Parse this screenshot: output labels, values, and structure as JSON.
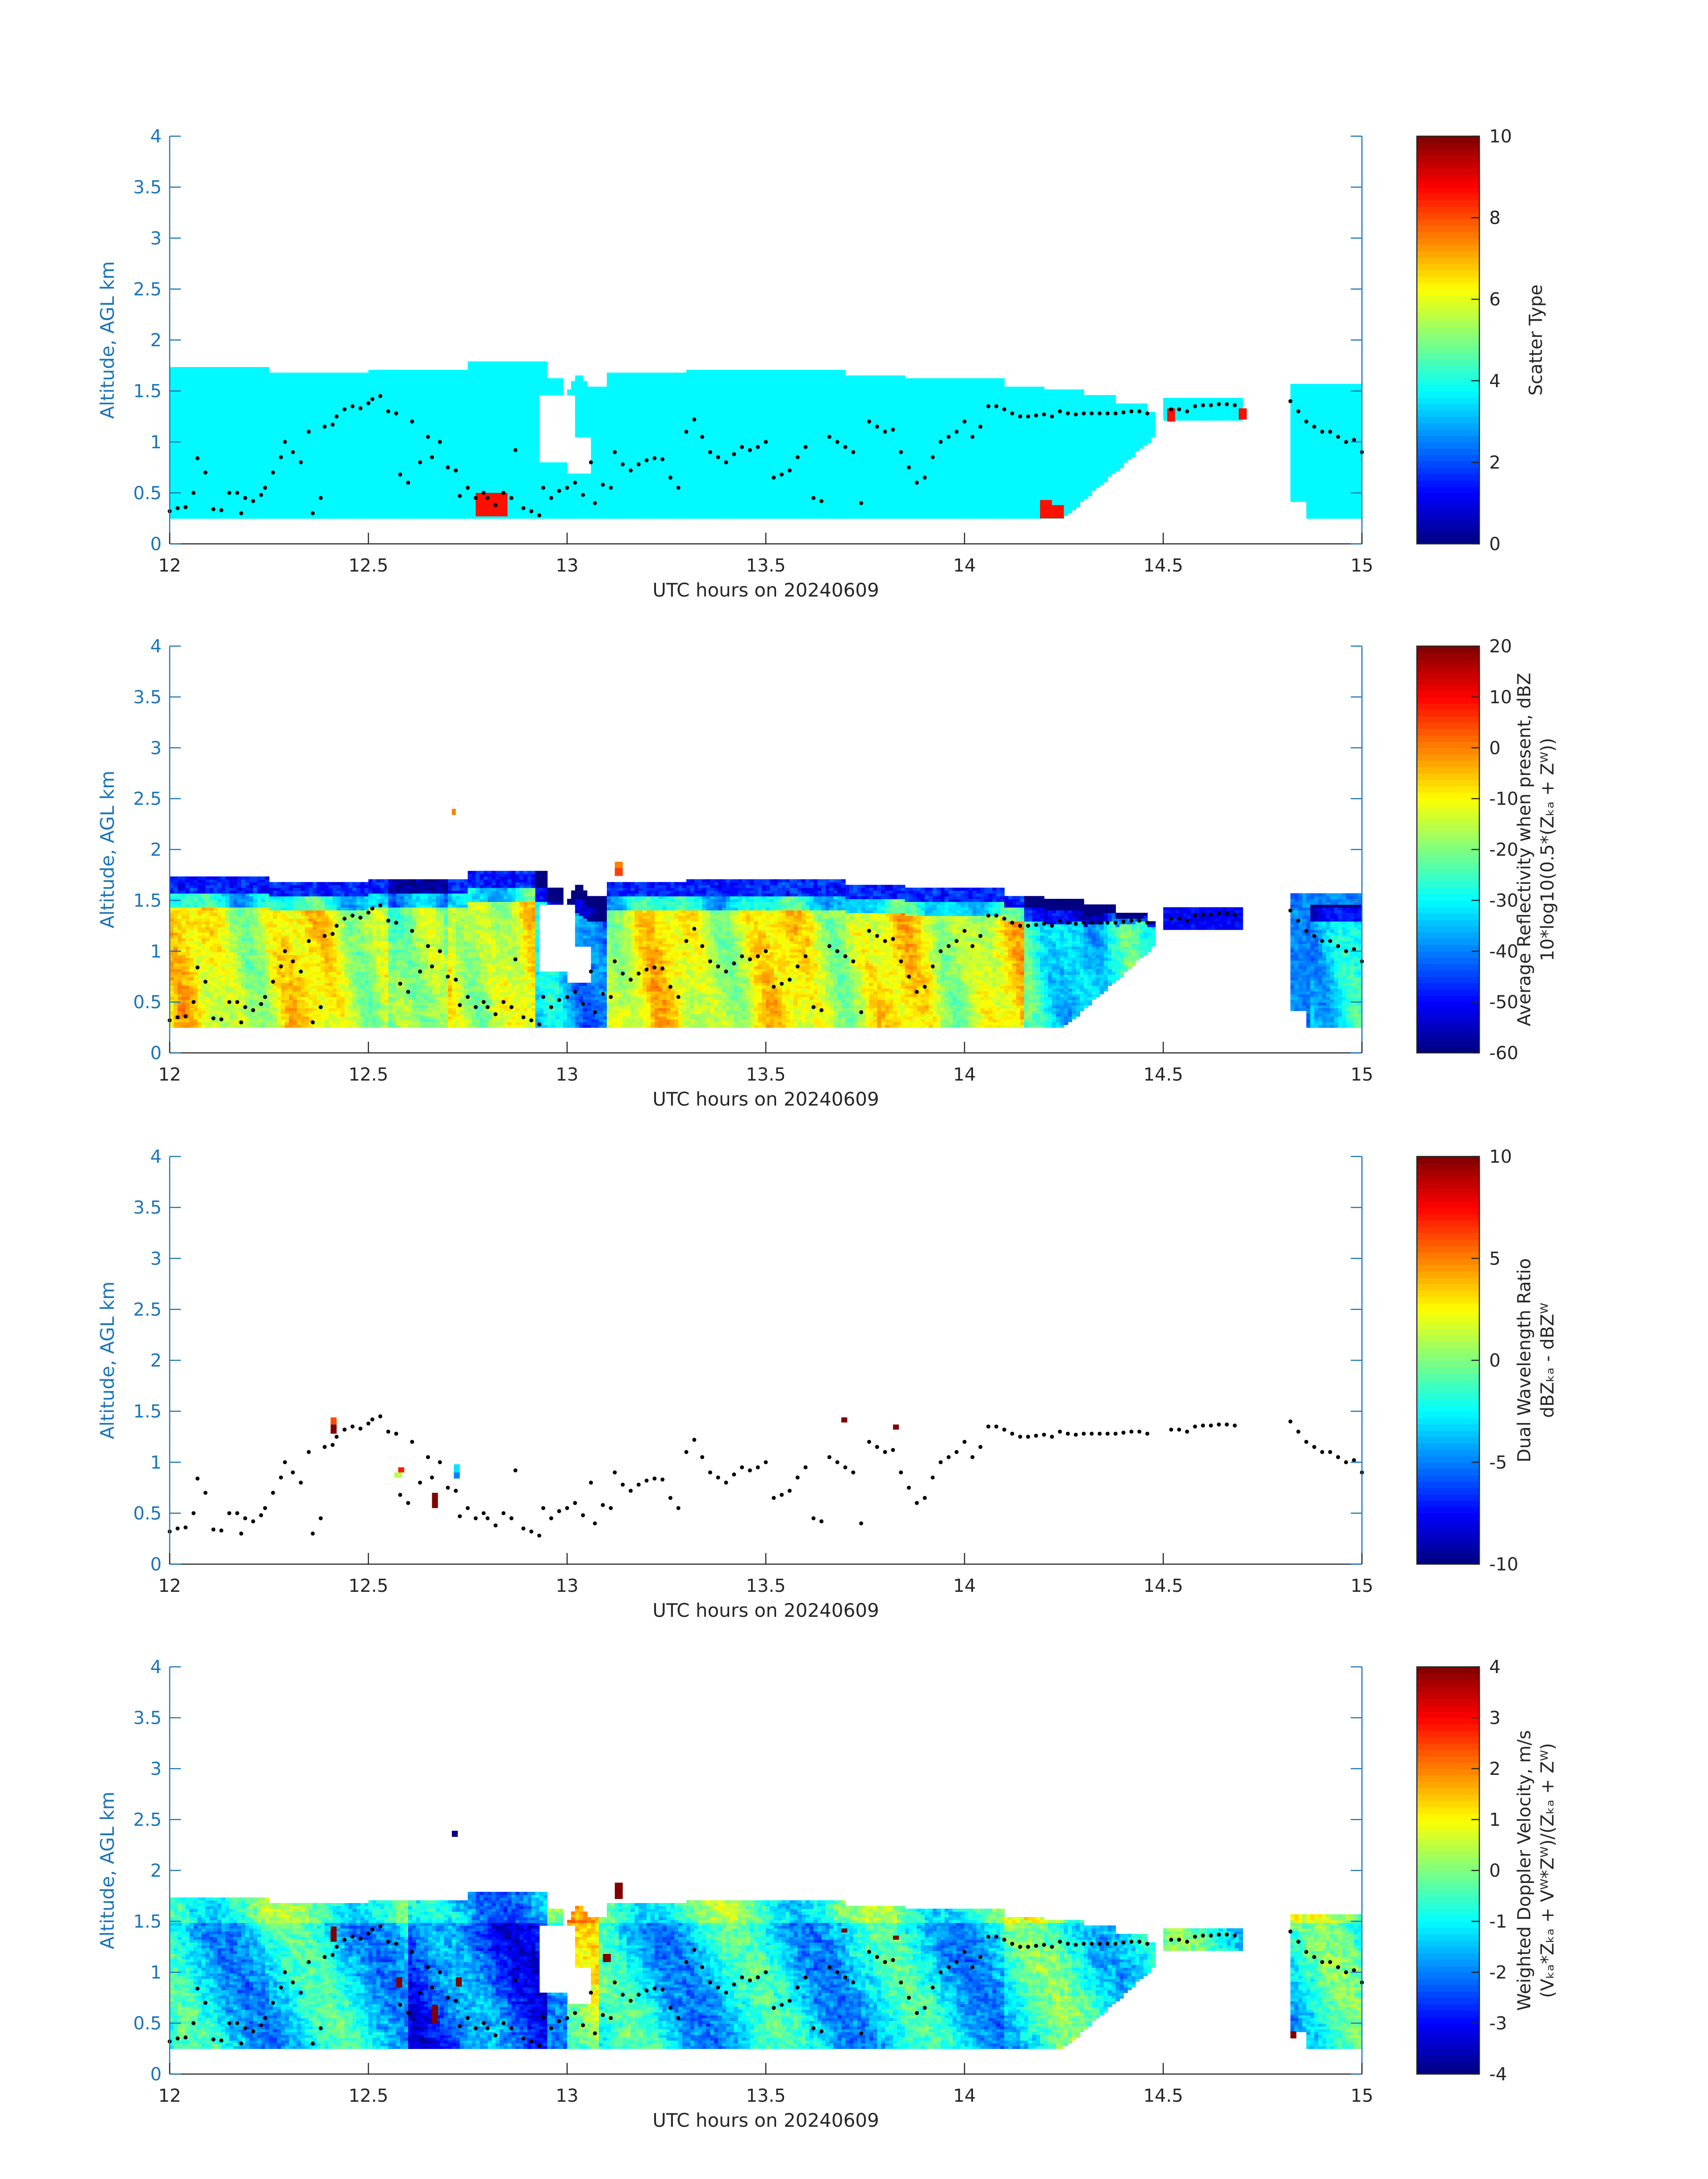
{
  "chart_data": [
    {
      "type": "heatmap",
      "xlabel": "UTC hours on 20240609",
      "ylabel": "Altitude, AGL km",
      "xlim": [
        12,
        15
      ],
      "ylim": [
        0,
        4
      ],
      "xticks": [
        "12",
        "12.5",
        "13",
        "13.5",
        "14",
        "14.5",
        "15"
      ],
      "yticks": [
        "0",
        "0.5",
        "1",
        "1.5",
        "2",
        "2.5",
        "3",
        "3.5",
        "4"
      ],
      "colorbar": {
        "label": [
          "Scatter Type"
        ],
        "range": [
          0,
          10
        ],
        "ticks": [
          "0",
          "2",
          "4",
          "6",
          "8",
          "10"
        ]
      },
      "field_mode": "scatter",
      "cloud_marker": "dots",
      "fill_value": 3.7,
      "spots": [
        {
          "t0": 12.77,
          "t1": 12.85,
          "z0": 0.27,
          "z1": 0.5,
          "v": 8.6
        },
        {
          "t0": 14.19,
          "t1": 14.22,
          "z0": 0.25,
          "z1": 0.43,
          "v": 8.6
        },
        {
          "t0": 14.22,
          "t1": 14.25,
          "z0": 0.25,
          "z1": 0.38,
          "v": 8.6
        },
        {
          "t0": 14.51,
          "t1": 14.53,
          "z0": 1.2,
          "z1": 1.33,
          "v": 8.6
        },
        {
          "t0": 14.69,
          "t1": 14.71,
          "z0": 1.22,
          "z1": 1.33,
          "v": 8.6
        }
      ]
    },
    {
      "type": "heatmap",
      "xlabel": "UTC hours on 20240609",
      "ylabel": "Altitude, AGL km",
      "xlim": [
        12,
        15
      ],
      "ylim": [
        0,
        4
      ],
      "xticks": [
        "12",
        "12.5",
        "13",
        "13.5",
        "14",
        "14.5",
        "15"
      ],
      "yticks": [
        "0",
        "0.5",
        "1",
        "1.5",
        "2",
        "2.5",
        "3",
        "3.5",
        "4"
      ],
      "colorbar": {
        "label": [
          "Average Reflectivity when present, dBZ",
          "10*log10(0.5*(Zₖₐ + Zᵂ))"
        ],
        "range": [
          -60,
          20
        ],
        "ticks": [
          "-60",
          "-50",
          "-40",
          "-30",
          "-20",
          "-10",
          "0",
          "10",
          "20"
        ]
      },
      "field_mode": "reflectivity",
      "cloud_marker": "dots",
      "spots": [
        {
          "t0": 12.71,
          "t1": 12.72,
          "z0": 2.34,
          "z1": 2.4,
          "v": 0
        },
        {
          "t0": 13.12,
          "t1": 13.14,
          "z0": 1.74,
          "z1": 1.82,
          "v": 5
        },
        {
          "t0": 13.12,
          "t1": 13.14,
          "z0": 1.82,
          "z1": 1.88,
          "v": 0
        }
      ]
    },
    {
      "type": "heatmap",
      "xlabel": "UTC hours on 20240609",
      "ylabel": "Altitude, AGL km",
      "xlim": [
        12,
        15
      ],
      "ylim": [
        0,
        4
      ],
      "xticks": [
        "12",
        "12.5",
        "13",
        "13.5",
        "14",
        "14.5",
        "15"
      ],
      "yticks": [
        "0",
        "0.5",
        "1",
        "1.5",
        "2",
        "2.5",
        "3",
        "3.5",
        "4"
      ],
      "colorbar": {
        "label": [
          "Dual Wavelength Ratio",
          "dBZₖₐ - dBZᵂ"
        ],
        "range": [
          -10,
          10
        ],
        "ticks": [
          "-10",
          "-5",
          "0",
          "5",
          "10"
        ]
      },
      "field_mode": "none",
      "cloud_marker": "dots",
      "spots": [
        {
          "t0": 12.405,
          "t1": 12.42,
          "z0": 1.37,
          "z1": 1.44,
          "v": 6
        },
        {
          "t0": 12.405,
          "t1": 12.42,
          "z0": 1.28,
          "z1": 1.37,
          "v": 10
        },
        {
          "t0": 12.565,
          "t1": 12.585,
          "z0": 0.85,
          "z1": 0.9,
          "v": 1
        },
        {
          "t0": 12.575,
          "t1": 12.59,
          "z0": 0.9,
          "z1": 0.95,
          "v": 7
        },
        {
          "t0": 12.66,
          "t1": 12.675,
          "z0": 0.55,
          "z1": 0.7,
          "v": 10
        },
        {
          "t0": 12.715,
          "t1": 12.73,
          "z0": 0.84,
          "z1": 0.9,
          "v": -5
        },
        {
          "t0": 12.715,
          "t1": 12.73,
          "z0": 0.9,
          "z1": 0.98,
          "v": -3
        },
        {
          "t0": 13.69,
          "t1": 13.705,
          "z0": 1.39,
          "z1": 1.44,
          "v": 10
        },
        {
          "t0": 13.82,
          "t1": 13.835,
          "z0": 1.32,
          "z1": 1.37,
          "v": 10
        }
      ]
    },
    {
      "type": "heatmap",
      "xlabel": "UTC hours on 20240609",
      "ylabel": "Altitude, AGL km",
      "xlim": [
        12,
        15
      ],
      "ylim": [
        0,
        4
      ],
      "xticks": [
        "12",
        "12.5",
        "13",
        "13.5",
        "14",
        "14.5",
        "15"
      ],
      "yticks": [
        "0",
        "0.5",
        "1",
        "1.5",
        "2",
        "2.5",
        "3",
        "3.5",
        "4"
      ],
      "colorbar": {
        "label": [
          "Weighted Doppler Velocity, m/s",
          "(Vₖₐ*Zₖₐ + Vᵂ*Zᵂ)/(Zₖₐ + Zᵂ)"
        ],
        "range": [
          -4,
          4
        ],
        "ticks": [
          "-4",
          "-3",
          "-2",
          "-1",
          "0",
          "1",
          "2",
          "3",
          "4"
        ]
      },
      "field_mode": "velocity",
      "cloud_marker": "dots",
      "spots": [
        {
          "t0": 12.71,
          "t1": 12.725,
          "z0": 2.33,
          "z1": 2.39,
          "v": -4
        },
        {
          "t0": 13.12,
          "t1": 13.14,
          "z0": 1.72,
          "z1": 1.88,
          "v": 4
        },
        {
          "t0": 12.405,
          "t1": 12.42,
          "z0": 1.3,
          "z1": 1.45,
          "v": 4
        },
        {
          "t0": 12.66,
          "t1": 12.675,
          "z0": 0.5,
          "z1": 0.68,
          "v": 4
        },
        {
          "t0": 12.57,
          "t1": 12.585,
          "z0": 0.85,
          "z1": 0.95,
          "v": 4
        },
        {
          "t0": 12.72,
          "t1": 12.735,
          "z0": 0.86,
          "z1": 0.95,
          "v": 4
        },
        {
          "t0": 13.09,
          "t1": 13.11,
          "z0": 1.1,
          "z1": 1.18,
          "v": 4
        },
        {
          "t0": 14.82,
          "t1": 14.835,
          "z0": 0.35,
          "z1": 0.42,
          "v": 4
        },
        {
          "t0": 13.69,
          "t1": 13.705,
          "z0": 1.39,
          "z1": 1.43,
          "v": 4
        },
        {
          "t0": 13.82,
          "t1": 13.835,
          "z0": 1.32,
          "z1": 1.36,
          "v": 4
        }
      ]
    }
  ]
}
